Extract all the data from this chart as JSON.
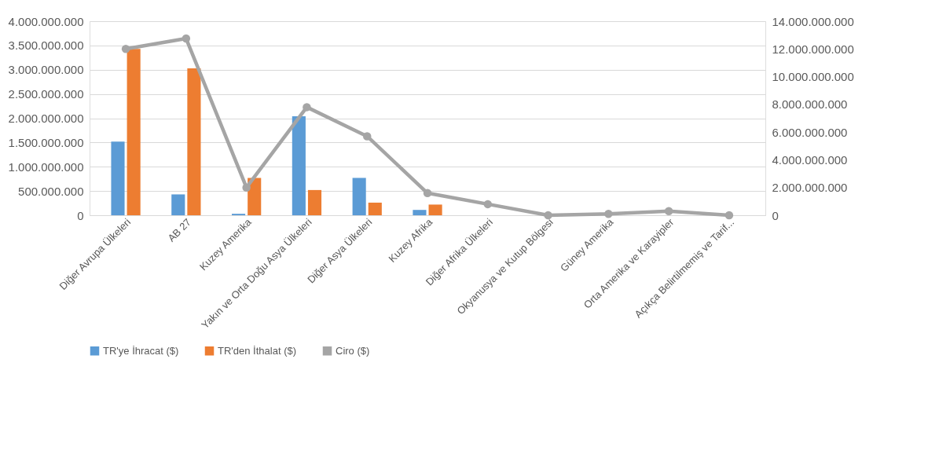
{
  "chart_data": {
    "type": "bar",
    "categories": [
      "Diğer Avrupa Ülkeleri",
      "AB 27",
      "Kuzey Amerika",
      "Yakın ve Orta Doğu Asya Ülkeleri",
      "Diğer Asya Ülkeleri",
      "Kuzey Afrika",
      "Diğer Afrika Ülkeleri",
      "Okyanusya ve Kutup Bölgesi",
      "Güney Amerika",
      "Orta Amerika ve Karayipler",
      "Açıkça Belirtilmemiş ve Tarif..."
    ],
    "series": [
      {
        "name": "TR'ye İhracat ($)",
        "color": "#5b9bd5",
        "values": [
          1520000000,
          430000000,
          30000000,
          2040000000,
          770000000,
          110000000,
          0,
          0,
          0,
          0,
          0
        ]
      },
      {
        "name": "TR'den İthalat ($)",
        "color": "#ed7d31",
        "values": [
          3430000000,
          3030000000,
          770000000,
          520000000,
          260000000,
          220000000,
          0,
          0,
          0,
          0,
          0
        ]
      },
      {
        "name": "Ciro ($)",
        "color": "#a5a5a5",
        "type": "line",
        "axis": "y2",
        "marker": "circle",
        "values": [
          12000000000,
          12750000000,
          2000000000,
          7800000000,
          5700000000,
          1600000000,
          800000000,
          0,
          100000000,
          300000000,
          0
        ]
      }
    ],
    "ylim": [
      0,
      4000000000
    ],
    "yticks": [
      {
        "value": 0,
        "label": "0"
      },
      {
        "value": 500000000,
        "label": "500.000.000"
      },
      {
        "value": 1000000000,
        "label": "1.000.000.000"
      },
      {
        "value": 1500000000,
        "label": "1.500.000.000"
      },
      {
        "value": 2000000000,
        "label": "2.000.000.000"
      },
      {
        "value": 2500000000,
        "label": "2.500.000.000"
      },
      {
        "value": 3000000000,
        "label": "3.000.000.000"
      },
      {
        "value": 3500000000,
        "label": "3.500.000.000"
      },
      {
        "value": 4000000000,
        "label": "4.000.000.000"
      }
    ],
    "y2lim": [
      0,
      14000000000
    ],
    "y2ticks": [
      {
        "value": 0,
        "label": "0"
      },
      {
        "value": 2000000000,
        "label": "2.000.000.000"
      },
      {
        "value": 4000000000,
        "label": "4.000.000.000"
      },
      {
        "value": 6000000000,
        "label": "6.000.000.000"
      },
      {
        "value": 8000000000,
        "label": "8.000.000.000"
      },
      {
        "value": 10000000000,
        "label": "10.000.000.000"
      },
      {
        "value": 12000000000,
        "label": "12.000.000.000"
      },
      {
        "value": 14000000000,
        "label": "14.000.000.000"
      }
    ],
    "grid": "y",
    "legend": "bottom"
  }
}
